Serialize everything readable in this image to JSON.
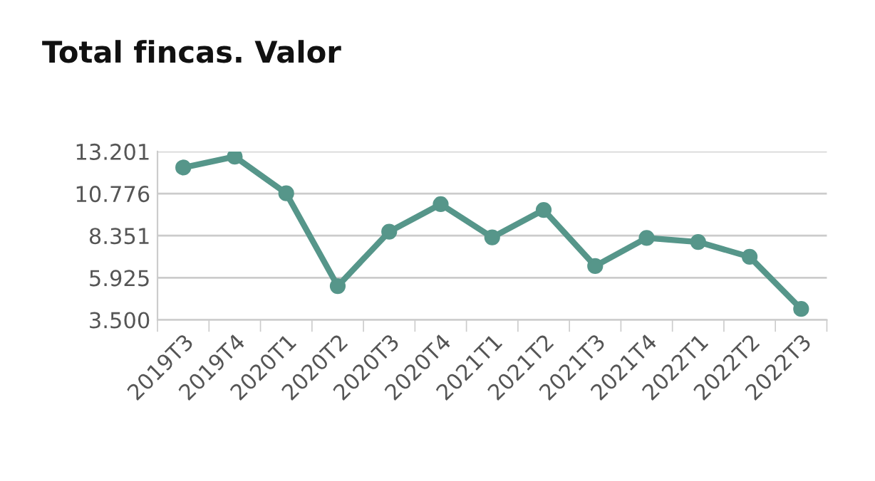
{
  "chart_data": {
    "type": "line",
    "title": "Total fincas. Valor",
    "categories": [
      "2019T3",
      "2019T4",
      "2020T1",
      "2020T2",
      "2020T3",
      "2020T4",
      "2021T1",
      "2021T2",
      "2021T3",
      "2021T4",
      "2022T1",
      "2022T2",
      "2022T3"
    ],
    "series": [
      {
        "color": "#56968a",
        "values": [
          12277,
          12904,
          10792,
          5448,
          8583,
          10165,
          8253,
          9835,
          6601,
          8220,
          7990,
          7132,
          4128
        ]
      }
    ],
    "ylim": [
      3500,
      13201
    ],
    "yticks": [
      {
        "value": 3500,
        "label": "3.500"
      },
      {
        "value": 5925,
        "label": "5.925"
      },
      {
        "value": 8351,
        "label": "8.351"
      },
      {
        "value": 10776,
        "label": "10.776"
      },
      {
        "value": 13201,
        "label": "13.201"
      }
    ],
    "grid": "y",
    "marker": "circle",
    "line_style": "solid",
    "legend": false
  }
}
